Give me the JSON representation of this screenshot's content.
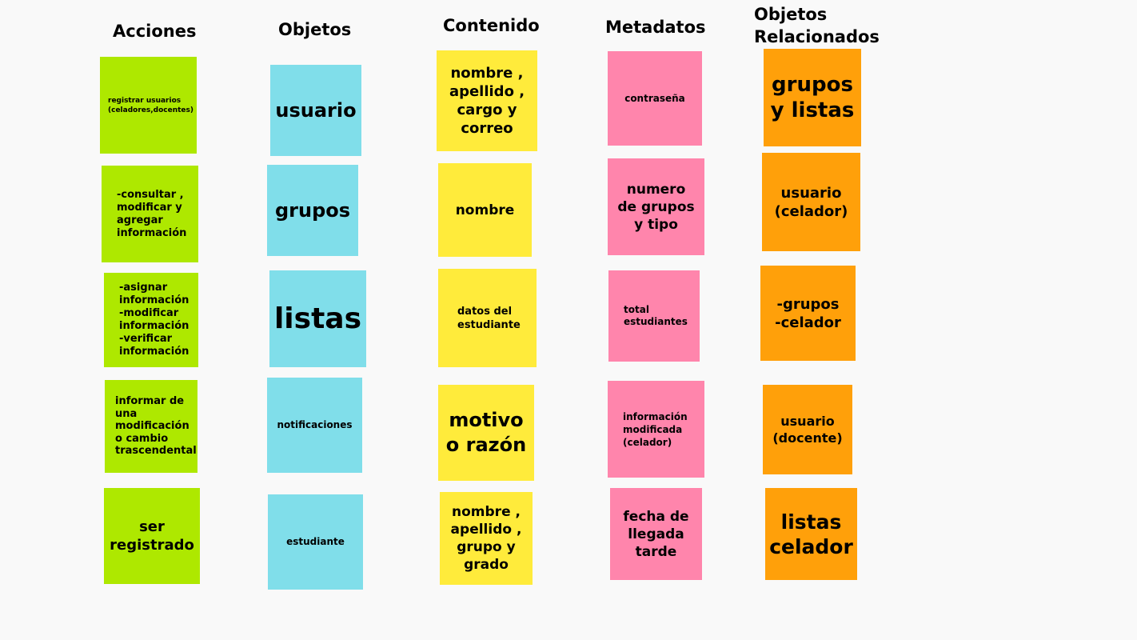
{
  "colors": {
    "acciones": "#aee800",
    "objetos": "#80deea",
    "contenido": "#ffeb3b",
    "metadatos": "#ff85ac",
    "relacionados": "#ffa00a",
    "background": "#f9f9f9"
  },
  "columns": {
    "acciones": {
      "title": "Acciones",
      "notes": [
        "registrar usuarios\n(celadores,docentes)",
        "-consultar  ,\nmodificar y\nagregar\ninformación",
        "-asignar\ninformación\n-modificar\ninformación\n-verificar\ninformación",
        "informar de\nuna\nmodificación\no cambio\ntrascendental",
        "ser\nregistrado"
      ]
    },
    "objetos": {
      "title": "Objetos",
      "notes": [
        "usuario",
        "grupos",
        "listas",
        "notificaciones",
        "estudiante"
      ]
    },
    "contenido": {
      "title": "Contenido",
      "notes": [
        "nombre ,\napellido ,\ncargo  y\ncorreo",
        "nombre",
        "datos del\nestudiante",
        "motivo\no razón",
        "nombre ,\napellido ,\ngrupo y\ngrado"
      ]
    },
    "metadatos": {
      "title": "Metadatos",
      "notes": [
        "contraseña",
        "numero\nde grupos\ny tipo",
        "total\nestudiantes",
        "información\nmodificada\n(celador)",
        "fecha de\nllegada\ntarde"
      ]
    },
    "relacionados": {
      "title": "Objetos\nRelacionados",
      "notes": [
        "grupos\ny listas",
        "usuario\n(celador)",
        "-grupos\n-celador",
        "usuario\n(docente)",
        "listas\ncelador"
      ]
    }
  }
}
